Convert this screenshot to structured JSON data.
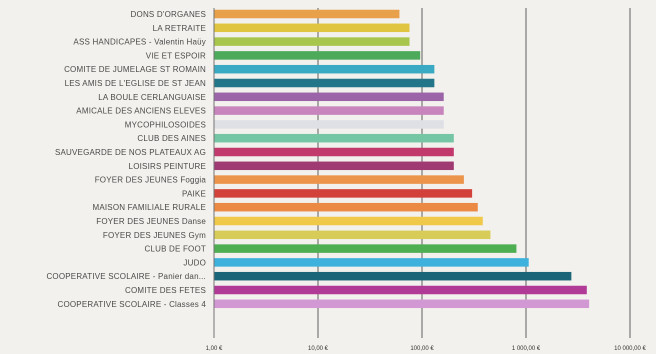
{
  "chart_data": {
    "type": "bar",
    "orientation": "horizontal",
    "x_scale": "log",
    "xlim": [
      1,
      10000
    ],
    "grid": true,
    "categories": [
      "DONS D'ORGANES",
      "LA RETRAITE",
      "ASS HANDICAPES - Valentin Haüy",
      "VIE ET ESPOIR",
      "COMITE DE JUMELAGE ST ROMAIN",
      "LES AMIS DE L'EGLISE DE ST JEAN",
      "LA BOULE CERLANGUAISE",
      "AMICALE DES ANCIENS ELEVES",
      "MYCOPHILOSOIDES",
      "CLUB DES AINES",
      "SAUVEGARDE DE NOS PLATEAUX AG",
      "LOISIRS PEINTURE",
      "FOYER DES JEUNES Foggia",
      "PAIKE",
      "MAISON FAMILIALE RURALE",
      "FOYER DES JEUNES Danse",
      "FOYER DES JEUNES Gym",
      "CLUB DE FOOT",
      "JUDO",
      "COOPERATIVE SCOLAIRE - Panier dan...",
      "COMITE DES FETES",
      "COOPERATIVE SCOLAIRE - Classes 4"
    ],
    "values": [
      60,
      75,
      75,
      95,
      130,
      130,
      160,
      160,
      160,
      200,
      200,
      200,
      250,
      300,
      340,
      380,
      450,
      800,
      1050,
      2700,
      3800,
      4000
    ],
    "colors": [
      "#e9a04a",
      "#e0c640",
      "#a8c64c",
      "#4caa5a",
      "#3aa9c4",
      "#23768a",
      "#9b64a8",
      "#c884bc",
      "#dfdfe6",
      "#74c6a4",
      "#c23a6c",
      "#a03a72",
      "#ec944a",
      "#d2423a",
      "#ea8a44",
      "#f0c84a",
      "#d8cc58",
      "#4eae52",
      "#3eb2dc",
      "#1a6678",
      "#b03a96",
      "#d298d4"
    ],
    "tick_values": [
      1,
      10,
      100,
      1000,
      10000
    ],
    "tick_labels": [
      "1,00 €",
      "10,00 €",
      "100,00 €",
      "1 000,00 €",
      "10 000,00 €"
    ],
    "title": "",
    "xlabel": "",
    "ylabel": ""
  }
}
